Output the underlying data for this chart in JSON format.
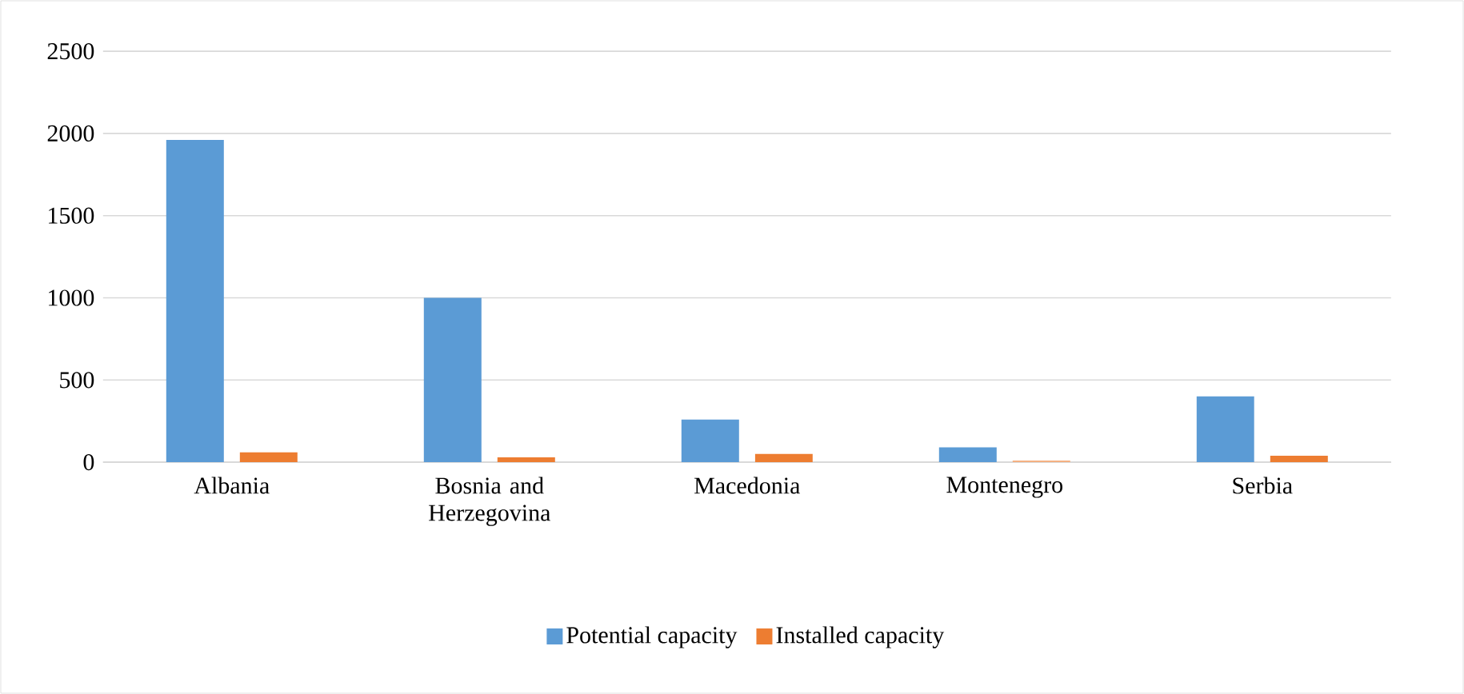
{
  "chart_data": {
    "type": "bar",
    "categories": [
      "Albania",
      "Bosnia and Herzegovina",
      "Macedonia",
      "Montenegro",
      "Serbia"
    ],
    "series": [
      {
        "name": "Potential capacity",
        "color": "#5b9bd5",
        "values": [
          1960,
          1000,
          260,
          90,
          400
        ]
      },
      {
        "name": "Installed capacity",
        "color": "#ed7d31",
        "colors": [
          "#ed7d31",
          "#ed7d31",
          "#ed7d31",
          "#f4b183",
          "#ed7d31"
        ],
        "values": [
          60,
          30,
          50,
          10,
          40
        ]
      }
    ],
    "ylim": [
      0,
      2500
    ],
    "yticks": [
      0,
      500,
      1000,
      1500,
      2000,
      2500
    ],
    "grid": "y",
    "legend": "bottom"
  }
}
